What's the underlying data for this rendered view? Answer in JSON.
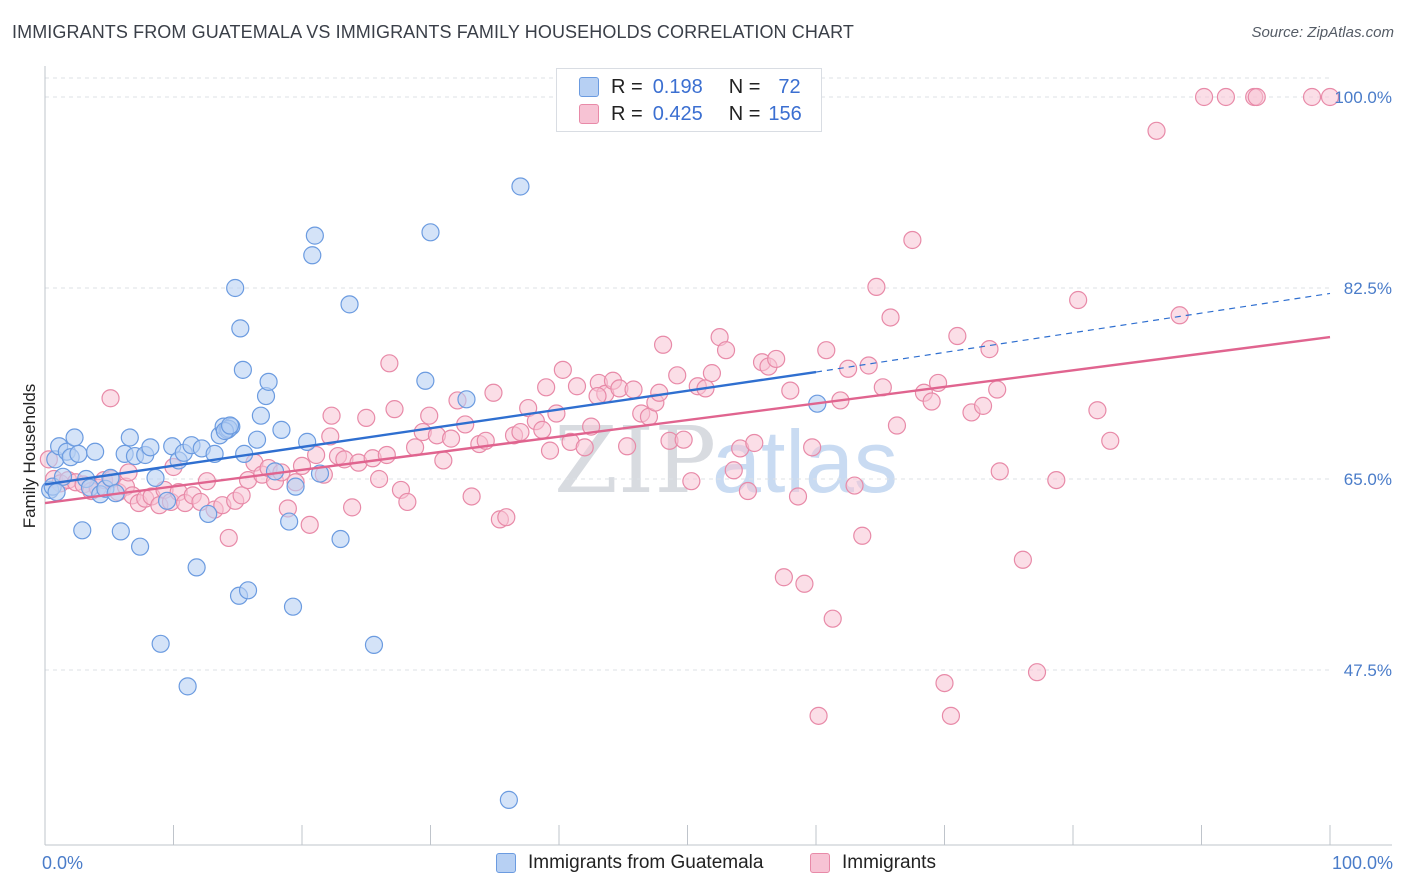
{
  "title": "IMMIGRANTS FROM GUATEMALA VS IMMIGRANTS FAMILY HOUSEHOLDS CORRELATION CHART",
  "source": "Source: ZipAtlas.com",
  "watermark": "ZIPatlas",
  "legend": {
    "rows": [
      {
        "r_label": "R =",
        "r_value": "0.198",
        "n_label": "N =",
        "n_value": "72"
      },
      {
        "r_label": "R =",
        "r_value": "0.425",
        "n_label": "N =",
        "n_value": "156"
      }
    ]
  },
  "colors": {
    "blue_fill": "#b7d0f3",
    "blue_stroke": "#6b9be0",
    "blue_line": "#2f6fd0",
    "pink_fill": "#f7c3d4",
    "pink_stroke": "#e88aa8",
    "pink_line": "#e0648f",
    "grid": "#dde1e6",
    "tick_text": "#4a7cc9"
  },
  "chart_data": {
    "type": "scatter",
    "title": "IMMIGRANTS FROM GUATEMALA VS IMMIGRANTS FAMILY HOUSEHOLDS CORRELATION CHART",
    "xlabel": "",
    "ylabel": "Family Households",
    "xlim": [
      0,
      100
    ],
    "ylim": [
      32,
      101
    ],
    "x_tick_labels": [
      "0.0%",
      "100.0%"
    ],
    "y_tick_labels": [
      "100.0%",
      "82.5%",
      "65.0%",
      "47.5%"
    ],
    "y_tick_values": [
      100,
      82.5,
      65,
      47.5
    ],
    "series": [
      {
        "name": "Immigrants from Guatemala",
        "color": "#6b9be0",
        "trend": {
          "x0": 0,
          "y0": 64.5,
          "x1": 60,
          "y1": 74.8,
          "dash_to_x": 100,
          "dash_to_y": 82.0
        },
        "points": [
          [
            0.4,
            64.0
          ],
          [
            0.6,
            64.3
          ],
          [
            0.8,
            66.8
          ],
          [
            1.1,
            68.0
          ],
          [
            1.4,
            65.2
          ],
          [
            1.7,
            67.5
          ],
          [
            2.0,
            67.0
          ],
          [
            2.3,
            68.8
          ],
          [
            2.6,
            67.3
          ],
          [
            2.9,
            60.3
          ],
          [
            3.2,
            65.0
          ],
          [
            3.5,
            64.2
          ],
          [
            3.9,
            67.5
          ],
          [
            4.3,
            63.6
          ],
          [
            4.7,
            64.1
          ],
          [
            5.1,
            65.1
          ],
          [
            5.5,
            63.7
          ],
          [
            5.9,
            60.2
          ],
          [
            6.2,
            67.3
          ],
          [
            6.6,
            68.8
          ],
          [
            7.0,
            67.1
          ],
          [
            7.4,
            58.8
          ],
          [
            7.8,
            67.2
          ],
          [
            8.2,
            67.9
          ],
          [
            8.6,
            65.1
          ],
          [
            9.0,
            49.9
          ],
          [
            9.5,
            63.0
          ],
          [
            9.9,
            68.0
          ],
          [
            10.4,
            66.7
          ],
          [
            10.8,
            67.4
          ],
          [
            11.1,
            46.0
          ],
          [
            11.4,
            68.1
          ],
          [
            11.8,
            56.9
          ],
          [
            12.2,
            67.8
          ],
          [
            12.7,
            61.8
          ],
          [
            13.2,
            67.3
          ],
          [
            13.6,
            69.0
          ],
          [
            13.9,
            69.8
          ],
          [
            14.2,
            69.5
          ],
          [
            14.5,
            69.8
          ],
          [
            14.3,
            69.6
          ],
          [
            14.0,
            69.4
          ],
          [
            14.4,
            69.9
          ],
          [
            14.8,
            82.5
          ],
          [
            15.1,
            54.3
          ],
          [
            15.5,
            67.3
          ],
          [
            15.2,
            78.8
          ],
          [
            15.4,
            75.0
          ],
          [
            15.8,
            54.8
          ],
          [
            16.5,
            68.6
          ],
          [
            16.8,
            70.8
          ],
          [
            17.2,
            72.6
          ],
          [
            17.4,
            73.9
          ],
          [
            17.9,
            65.7
          ],
          [
            18.4,
            69.5
          ],
          [
            19.0,
            61.1
          ],
          [
            19.3,
            53.3
          ],
          [
            19.5,
            64.3
          ],
          [
            20.4,
            68.4
          ],
          [
            20.8,
            85.5
          ],
          [
            21.0,
            87.3
          ],
          [
            21.4,
            65.5
          ],
          [
            23.0,
            59.5
          ],
          [
            23.7,
            81.0
          ],
          [
            25.6,
            49.8
          ],
          [
            29.6,
            74.0
          ],
          [
            30.0,
            87.6
          ],
          [
            32.8,
            72.3
          ],
          [
            36.1,
            35.6
          ],
          [
            37.0,
            91.8
          ],
          [
            60.1,
            71.9
          ],
          [
            0.9,
            63.8
          ]
        ]
      },
      {
        "name": "Immigrants",
        "color": "#e88aa8",
        "trend": {
          "x0": 0,
          "y0": 62.8,
          "x1": 100,
          "y1": 78.0
        },
        "points": [
          [
            0.3,
            66.8
          ],
          [
            0.7,
            65.0
          ],
          [
            1.2,
            64.6
          ],
          [
            1.8,
            64.9
          ],
          [
            2.4,
            64.7
          ],
          [
            3.0,
            64.5
          ],
          [
            3.6,
            63.9
          ],
          [
            4.1,
            64.2
          ],
          [
            4.6,
            64.9
          ],
          [
            5.2,
            65.0
          ],
          [
            5.7,
            63.8
          ],
          [
            6.3,
            64.3
          ],
          [
            6.8,
            63.5
          ],
          [
            7.3,
            62.8
          ],
          [
            7.8,
            63.2
          ],
          [
            8.3,
            63.4
          ],
          [
            8.9,
            62.6
          ],
          [
            9.3,
            64.0
          ],
          [
            9.8,
            62.9
          ],
          [
            10.4,
            63.8
          ],
          [
            10.9,
            62.8
          ],
          [
            11.5,
            63.5
          ],
          [
            12.1,
            62.9
          ],
          [
            12.6,
            64.8
          ],
          [
            13.2,
            62.2
          ],
          [
            13.8,
            62.6
          ],
          [
            14.3,
            59.6
          ],
          [
            14.8,
            63.0
          ],
          [
            15.3,
            63.5
          ],
          [
            15.8,
            64.9
          ],
          [
            16.3,
            66.5
          ],
          [
            16.9,
            65.4
          ],
          [
            17.4,
            66.0
          ],
          [
            17.9,
            64.8
          ],
          [
            18.4,
            65.6
          ],
          [
            18.9,
            62.3
          ],
          [
            19.5,
            64.7
          ],
          [
            20.0,
            66.2
          ],
          [
            20.6,
            60.8
          ],
          [
            21.1,
            67.2
          ],
          [
            21.7,
            65.4
          ],
          [
            22.2,
            68.9
          ],
          [
            22.8,
            67.1
          ],
          [
            23.3,
            66.8
          ],
          [
            23.9,
            62.4
          ],
          [
            24.4,
            66.5
          ],
          [
            25.0,
            70.6
          ],
          [
            25.5,
            66.9
          ],
          [
            26.0,
            65.0
          ],
          [
            26.6,
            67.2
          ],
          [
            27.2,
            71.4
          ],
          [
            27.7,
            64.0
          ],
          [
            28.2,
            62.9
          ],
          [
            28.8,
            67.9
          ],
          [
            29.4,
            69.3
          ],
          [
            29.9,
            70.8
          ],
          [
            30.5,
            69.0
          ],
          [
            31.0,
            66.7
          ],
          [
            31.6,
            68.7
          ],
          [
            32.1,
            72.2
          ],
          [
            32.7,
            70.0
          ],
          [
            33.2,
            63.4
          ],
          [
            33.8,
            68.2
          ],
          [
            34.3,
            68.5
          ],
          [
            34.9,
            72.9
          ],
          [
            35.4,
            61.3
          ],
          [
            35.9,
            61.5
          ],
          [
            36.5,
            69.0
          ],
          [
            37.0,
            69.3
          ],
          [
            37.6,
            71.5
          ],
          [
            38.2,
            70.3
          ],
          [
            38.7,
            69.5
          ],
          [
            39.3,
            67.6
          ],
          [
            39.8,
            71.0
          ],
          [
            40.3,
            75.0
          ],
          [
            40.9,
            68.4
          ],
          [
            41.4,
            73.5
          ],
          [
            42.0,
            67.9
          ],
          [
            42.5,
            69.8
          ],
          [
            43.1,
            73.8
          ],
          [
            43.6,
            72.8
          ],
          [
            44.2,
            74.0
          ],
          [
            44.7,
            73.3
          ],
          [
            45.3,
            68.0
          ],
          [
            45.8,
            73.2
          ],
          [
            46.4,
            71.0
          ],
          [
            47.0,
            70.7
          ],
          [
            47.5,
            72.0
          ],
          [
            48.1,
            77.3
          ],
          [
            48.6,
            68.5
          ],
          [
            49.2,
            74.5
          ],
          [
            49.7,
            68.6
          ],
          [
            50.3,
            64.8
          ],
          [
            50.8,
            73.5
          ],
          [
            51.4,
            73.3
          ],
          [
            51.9,
            74.7
          ],
          [
            52.5,
            78.0
          ],
          [
            53.0,
            76.8
          ],
          [
            53.6,
            65.8
          ],
          [
            54.1,
            67.8
          ],
          [
            54.7,
            63.9
          ],
          [
            55.2,
            68.3
          ],
          [
            55.8,
            75.7
          ],
          [
            56.3,
            75.3
          ],
          [
            56.9,
            76.0
          ],
          [
            57.5,
            56.0
          ],
          [
            58.0,
            73.1
          ],
          [
            58.6,
            63.4
          ],
          [
            59.1,
            55.4
          ],
          [
            59.7,
            67.9
          ],
          [
            60.2,
            43.3
          ],
          [
            60.8,
            76.8
          ],
          [
            61.3,
            52.2
          ],
          [
            61.9,
            72.2
          ],
          [
            62.5,
            75.1
          ],
          [
            63.0,
            64.4
          ],
          [
            63.6,
            59.8
          ],
          [
            64.1,
            75.4
          ],
          [
            64.7,
            82.6
          ],
          [
            65.2,
            73.4
          ],
          [
            65.8,
            79.8
          ],
          [
            66.3,
            69.9
          ],
          [
            67.5,
            86.9
          ],
          [
            68.4,
            72.9
          ],
          [
            69.0,
            72.1
          ],
          [
            69.5,
            73.8
          ],
          [
            70.0,
            46.3
          ],
          [
            71.0,
            78.1
          ],
          [
            72.1,
            71.1
          ],
          [
            73.0,
            71.7
          ],
          [
            73.5,
            76.9
          ],
          [
            74.3,
            65.7
          ],
          [
            76.1,
            57.6
          ],
          [
            77.2,
            47.3
          ],
          [
            78.7,
            64.9
          ],
          [
            80.4,
            81.4
          ],
          [
            81.9,
            71.3
          ],
          [
            82.9,
            68.5
          ],
          [
            86.5,
            96.9
          ],
          [
            88.3,
            80.0
          ],
          [
            90.2,
            100.0
          ],
          [
            91.9,
            100.0
          ],
          [
            94.1,
            100.0
          ],
          [
            94.3,
            100.0
          ],
          [
            98.6,
            100.0
          ],
          [
            100.0,
            100.0
          ],
          [
            5.1,
            72.4
          ],
          [
            70.5,
            43.3
          ],
          [
            74.1,
            73.2
          ],
          [
            22.3,
            70.8
          ],
          [
            10.0,
            66.1
          ],
          [
            6.5,
            65.6
          ],
          [
            39.0,
            73.4
          ],
          [
            26.8,
            75.6
          ],
          [
            43.0,
            72.6
          ],
          [
            47.8,
            72.9
          ]
        ]
      }
    ]
  }
}
